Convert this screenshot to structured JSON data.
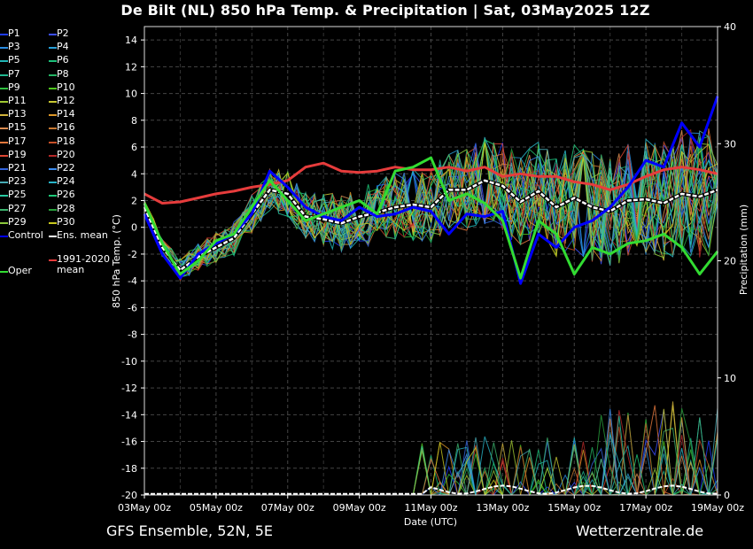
{
  "title": "De Bilt  (NL)  850 hPa Temp. & Precipitation | Sat, 03May2025 12Z",
  "footer": {
    "source": "GFS Ensemble, 52N, 5E",
    "site": "Wetterzentrale.de"
  },
  "legend": [
    {
      "label": "P1",
      "color": "#1e3cff"
    },
    {
      "label": "P2",
      "color": "#3c50ff"
    },
    {
      "label": "P3",
      "color": "#2a8ce0"
    },
    {
      "label": "P4",
      "color": "#28a0d8"
    },
    {
      "label": "P5",
      "color": "#20b4b4"
    },
    {
      "label": "P6",
      "color": "#1cc07a"
    },
    {
      "label": "P7",
      "color": "#20b890"
    },
    {
      "label": "P8",
      "color": "#24b464"
    },
    {
      "label": "P9",
      "color": "#30c040"
    },
    {
      "label": "P10",
      "color": "#50c81e"
    },
    {
      "label": "P11",
      "color": "#a0c832"
    },
    {
      "label": "P12",
      "color": "#c8c832"
    },
    {
      "label": "P13",
      "color": "#d2b43c"
    },
    {
      "label": "P14",
      "color": "#dc9628"
    },
    {
      "label": "P15",
      "color": "#dc8c50"
    },
    {
      "label": "P16",
      "color": "#c87832"
    },
    {
      "label": "P17",
      "color": "#e6783c"
    },
    {
      "label": "P18",
      "color": "#c85028"
    },
    {
      "label": "P19",
      "color": "#dc4632"
    },
    {
      "label": "P20",
      "color": "#b42828"
    },
    {
      "label": "P21",
      "color": "#3264dc"
    },
    {
      "label": "P22",
      "color": "#3c8cf0"
    },
    {
      "label": "P23",
      "color": "#46aab4"
    },
    {
      "label": "P24",
      "color": "#28b4c8"
    },
    {
      "label": "P25",
      "color": "#28c8a0"
    },
    {
      "label": "P26",
      "color": "#1ec878"
    },
    {
      "label": "P27",
      "color": "#3cb46e"
    },
    {
      "label": "P28",
      "color": "#28a03c"
    },
    {
      "label": "P29",
      "color": "#8cc83c"
    },
    {
      "label": "P30",
      "color": "#c8c81e"
    },
    {
      "label": "Control",
      "color": "#0000ff"
    },
    {
      "label": "Ens. mean",
      "color": "#ffffff"
    },
    {
      "label": "1991-2020 mean",
      "color": "#e63c3c"
    },
    {
      "label": "Oper",
      "color": "#32dc32"
    }
  ],
  "chart_data": {
    "type": "line",
    "xlabel": "Date (UTC)",
    "ylabel": "850 hPa Temp. (°C)",
    "y2label": "Precipitation (mm)",
    "xlim": [
      0,
      384
    ],
    "ylim": [
      -20,
      15
    ],
    "y2lim": [
      0,
      40
    ],
    "x_ticks": [
      {
        "x": 0,
        "label": "03May 00z"
      },
      {
        "x": 48,
        "label": "05May 00z"
      },
      {
        "x": 96,
        "label": "07May 00z"
      },
      {
        "x": 144,
        "label": "09May 00z"
      },
      {
        "x": 192,
        "label": "11May 00z"
      },
      {
        "x": 240,
        "label": "13May 00z"
      },
      {
        "x": 288,
        "label": "15May 00z"
      },
      {
        "x": 336,
        "label": "17May 00z"
      },
      {
        "x": 384,
        "label": "19May 00z"
      }
    ],
    "y_ticks": [
      14,
      12,
      10,
      8,
      6,
      4,
      2,
      0,
      -2,
      -4,
      -6,
      -8,
      -10,
      -12,
      -14,
      -16,
      -18,
      -20
    ],
    "y2_ticks": [
      40,
      30,
      20,
      10,
      0
    ],
    "grid": true,
    "series": [
      {
        "name": "Ens. mean",
        "color": "#ffffff",
        "x": [
          0,
          12,
          24,
          36,
          48,
          60,
          72,
          84,
          96,
          108,
          120,
          132,
          144,
          156,
          168,
          180,
          192,
          204,
          216,
          228,
          240,
          252,
          264,
          276,
          288,
          300,
          312,
          324,
          336,
          348,
          360,
          372,
          384
        ],
        "values": [
          1.5,
          -1.5,
          -3.2,
          -2.2,
          -1.5,
          -0.8,
          1.0,
          2.8,
          2.5,
          0.8,
          0.6,
          0.3,
          0.8,
          1.1,
          1.5,
          1.7,
          1.5,
          2.8,
          2.8,
          3.5,
          3.1,
          1.9,
          2.7,
          1.5,
          2.2,
          1.5,
          1.2,
          2.0,
          2.1,
          1.8,
          2.5,
          2.3,
          2.8
        ]
      },
      {
        "name": "1991-2020 mean",
        "color": "#e63c3c",
        "x": [
          0,
          12,
          24,
          36,
          48,
          60,
          72,
          84,
          96,
          108,
          120,
          132,
          144,
          156,
          168,
          180,
          192,
          204,
          216,
          228,
          240,
          252,
          264,
          276,
          288,
          300,
          312,
          324,
          336,
          348,
          360,
          372,
          384
        ],
        "values": [
          2.5,
          1.8,
          1.9,
          2.2,
          2.5,
          2.7,
          3.0,
          3.2,
          3.5,
          4.5,
          4.8,
          4.2,
          4.1,
          4.2,
          4.5,
          4.3,
          4.3,
          4.5,
          4.2,
          4.5,
          3.8,
          4.0,
          3.8,
          3.8,
          3.4,
          3.2,
          2.8,
          3.2,
          3.8,
          4.3,
          4.5,
          4.3,
          4.0
        ]
      },
      {
        "name": "Control",
        "color": "#0000ff",
        "x": [
          0,
          12,
          24,
          36,
          48,
          60,
          72,
          84,
          96,
          108,
          120,
          132,
          144,
          156,
          168,
          180,
          192,
          204,
          216,
          228,
          240,
          252,
          264,
          276,
          288,
          300,
          312,
          324,
          336,
          348,
          360,
          372,
          384
        ],
        "values": [
          1.0,
          -2.0,
          -3.8,
          -2.0,
          -1.2,
          -0.5,
          1.0,
          4.2,
          3.0,
          1.5,
          0.8,
          0.5,
          1.5,
          0.8,
          1.0,
          1.5,
          1.2,
          -0.5,
          1.0,
          0.8,
          1.2,
          -4.2,
          -0.5,
          -1.5,
          0.0,
          0.5,
          1.5,
          3.0,
          5.0,
          4.5,
          7.8,
          6.0,
          9.8
        ]
      },
      {
        "name": "Oper",
        "color": "#32dc32",
        "x": [
          0,
          12,
          24,
          36,
          48,
          60,
          72,
          84,
          96,
          108,
          120,
          132,
          144,
          156,
          168,
          180,
          192,
          204,
          216,
          228,
          240,
          252,
          264,
          276,
          288,
          300,
          312,
          324,
          336,
          348,
          360,
          372,
          384
        ],
        "values": [
          1.8,
          -1.2,
          -3.5,
          -2.5,
          -1.0,
          -0.5,
          1.5,
          3.5,
          2.0,
          0.5,
          1.0,
          1.5,
          2.0,
          1.0,
          4.2,
          4.5,
          5.2,
          2.0,
          2.5,
          1.8,
          0.5,
          -3.8,
          0.5,
          -0.5,
          -3.5,
          -1.5,
          -2.0,
          -1.2,
          -1.0,
          -0.5,
          -1.5,
          -3.5,
          -1.8
        ]
      }
    ]
  }
}
